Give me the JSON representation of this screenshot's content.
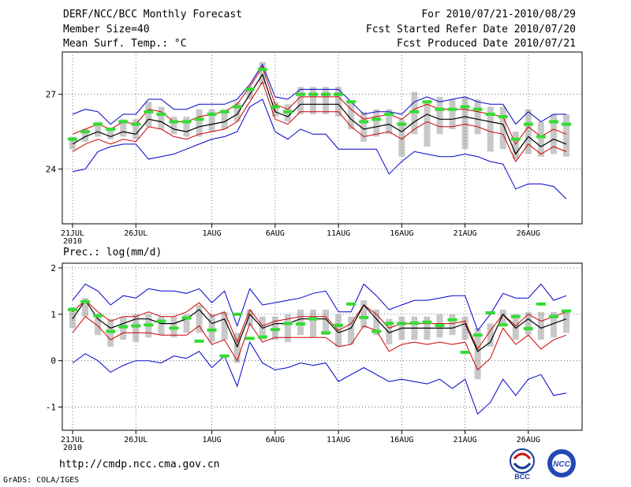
{
  "header": {
    "title": "DERF/NCC/BCC Monthly Forecast",
    "member_size": "Member Size=40",
    "variable": "Mean Surf. Temp.: °C",
    "forecast_period": "For 2010/07/21-2010/08/29",
    "started_refer": "Fcst Started Refer Date 2010/07/20",
    "produced": "Fcst Produced Date 2010/07/21"
  },
  "footer": {
    "url": "http://cmdp.ncc.cma.gov.cn",
    "grads": "GrADS: COLA/IGES",
    "logo_bcc": "BCC",
    "logo_ncc": "NCC"
  },
  "colors": {
    "mean": "#000000",
    "spread": "#cc0000",
    "extreme": "#0000cc",
    "median": "#33dd33",
    "box": "#c8c8c8"
  },
  "chart_data": [
    {
      "type": "line",
      "title": "Mean Surf. Temp.: °C",
      "x_tick_labels": [
        "21JUL",
        "26JUL",
        "1AUG",
        "6AUG",
        "11AUG",
        "16AUG",
        "21AUG",
        "26AUG"
      ],
      "x_tick_days": [
        1,
        6,
        12,
        17,
        22,
        27,
        32,
        37
      ],
      "year_label": "2010",
      "ylim": [
        21.8,
        28.7
      ],
      "yticks": [
        24,
        27
      ],
      "ytick_labels": [
        "24",
        "27"
      ],
      "days": 40,
      "series": [
        {
          "name": "ensemble mean",
          "values": [
            25.0,
            25.3,
            25.5,
            25.3,
            25.5,
            25.4,
            26.0,
            25.9,
            25.6,
            25.5,
            25.7,
            25.8,
            25.9,
            26.2,
            27.0,
            27.8,
            26.3,
            26.1,
            26.6,
            26.6,
            26.6,
            26.6,
            26.0,
            25.6,
            25.7,
            25.8,
            25.5,
            25.9,
            26.2,
            26.0,
            26.0,
            26.1,
            26.0,
            25.9,
            25.8,
            24.6,
            25.3,
            24.9,
            25.2,
            25.0
          ]
        },
        {
          "name": "upper spread",
          "values": [
            25.4,
            25.6,
            25.8,
            25.6,
            25.9,
            25.8,
            26.4,
            26.3,
            25.9,
            25.9,
            26.1,
            26.2,
            26.3,
            26.6,
            27.3,
            28.1,
            26.6,
            26.4,
            26.9,
            26.9,
            26.9,
            26.9,
            26.4,
            26.0,
            26.1,
            26.2,
            26.0,
            26.4,
            26.6,
            26.4,
            26.4,
            26.4,
            26.3,
            26.2,
            26.1,
            25.0,
            25.7,
            25.3,
            25.6,
            25.4
          ]
        },
        {
          "name": "lower spread",
          "values": [
            24.7,
            25.0,
            25.2,
            25.0,
            25.2,
            25.1,
            25.7,
            25.6,
            25.3,
            25.2,
            25.4,
            25.5,
            25.6,
            25.9,
            26.7,
            27.5,
            26.0,
            25.8,
            26.3,
            26.3,
            26.3,
            26.3,
            25.7,
            25.3,
            25.4,
            25.5,
            25.2,
            25.6,
            25.9,
            25.7,
            25.7,
            25.8,
            25.7,
            25.5,
            25.4,
            24.3,
            25.0,
            24.6,
            24.9,
            24.7
          ]
        },
        {
          "name": "maximum",
          "values": [
            26.2,
            26.4,
            26.3,
            25.8,
            26.2,
            26.2,
            26.8,
            26.8,
            26.4,
            26.4,
            26.6,
            26.6,
            26.6,
            26.8,
            27.4,
            28.2,
            26.9,
            26.8,
            27.2,
            27.2,
            27.2,
            27.2,
            26.7,
            26.2,
            26.3,
            26.3,
            26.2,
            26.7,
            26.9,
            26.7,
            26.8,
            26.9,
            26.7,
            26.6,
            26.6,
            25.8,
            26.3,
            25.9,
            26.2,
            26.2
          ]
        },
        {
          "name": "minimum",
          "values": [
            23.9,
            24.0,
            24.7,
            24.9,
            25.0,
            25.0,
            24.4,
            24.5,
            24.6,
            24.8,
            25.0,
            25.2,
            25.3,
            25.5,
            26.5,
            26.8,
            25.5,
            25.2,
            25.6,
            25.4,
            25.4,
            24.8,
            24.8,
            24.8,
            24.8,
            23.8,
            24.3,
            24.7,
            24.6,
            24.5,
            24.5,
            24.6,
            24.5,
            24.3,
            24.2,
            23.2,
            23.4,
            23.4,
            23.3,
            22.8
          ]
        },
        {
          "name": "median",
          "values": [
            25.2,
            25.5,
            25.8,
            25.6,
            25.9,
            25.8,
            26.3,
            26.2,
            25.9,
            25.9,
            26.0,
            26.2,
            26.3,
            26.5,
            27.2,
            28.0,
            26.5,
            26.3,
            27.0,
            27.0,
            27.0,
            27.0,
            26.7,
            25.9,
            26.0,
            26.2,
            25.8,
            26.3,
            26.7,
            26.4,
            26.4,
            26.5,
            26.4,
            26.2,
            26.1,
            25.2,
            25.8,
            25.3,
            25.9,
            25.8
          ]
        },
        {
          "name": "box upper",
          "values": [
            25.3,
            25.6,
            25.9,
            25.6,
            26.0,
            26.0,
            26.7,
            26.5,
            26.1,
            26.1,
            26.4,
            26.4,
            26.4,
            26.7,
            27.3,
            28.3,
            26.7,
            26.6,
            27.3,
            27.3,
            27.3,
            27.3,
            26.7,
            26.3,
            26.4,
            26.4,
            26.0,
            27.1,
            26.7,
            26.9,
            26.8,
            26.9,
            26.8,
            26.5,
            26.5,
            25.5,
            26.4,
            25.9,
            26.2,
            26.2
          ]
        },
        {
          "name": "box lower",
          "values": [
            24.8,
            25.1,
            25.3,
            25.2,
            25.3,
            25.2,
            25.7,
            25.6,
            25.4,
            25.3,
            25.3,
            25.5,
            25.6,
            25.9,
            26.8,
            27.4,
            26.1,
            25.9,
            26.2,
            26.2,
            26.2,
            26.1,
            25.6,
            25.1,
            25.3,
            25.4,
            24.5,
            25.4,
            24.9,
            25.4,
            25.6,
            24.8,
            25.4,
            24.7,
            24.8,
            24.4,
            24.6,
            24.5,
            24.6,
            24.5
          ]
        }
      ]
    },
    {
      "type": "line",
      "title": "Prec.: log(mm/d)",
      "x_tick_labels": [
        "21JUL",
        "26JUL",
        "1AUG",
        "6AUG",
        "11AUG",
        "16AUG",
        "21AUG",
        "26AUG"
      ],
      "x_tick_days": [
        1,
        6,
        12,
        17,
        22,
        27,
        32,
        37
      ],
      "year_label": "2010",
      "ylim": [
        -1.5,
        2.1
      ],
      "yticks": [
        -1,
        0,
        1,
        2
      ],
      "ytick_labels": [
        "-1",
        "0",
        "1",
        "2"
      ],
      "days": 40,
      "series": [
        {
          "name": "ensemble mean",
          "values": [
            0.9,
            1.3,
            0.9,
            0.7,
            0.8,
            0.9,
            0.9,
            0.8,
            0.8,
            0.9,
            1.1,
            0.8,
            0.9,
            0.3,
            1.0,
            0.7,
            0.8,
            0.8,
            0.9,
            0.9,
            0.9,
            0.6,
            0.7,
            1.2,
            0.9,
            0.6,
            0.7,
            0.7,
            0.7,
            0.7,
            0.7,
            0.8,
            0.2,
            0.4,
            1.0,
            0.7,
            0.9,
            0.7,
            0.8,
            0.9
          ]
        },
        {
          "name": "upper spread",
          "values": [
            1.05,
            1.3,
            1.05,
            0.85,
            0.95,
            0.95,
            1.05,
            0.95,
            0.95,
            1.05,
            1.25,
            0.95,
            1.05,
            0.4,
            1.1,
            0.75,
            0.85,
            0.9,
            0.95,
            0.95,
            0.95,
            0.65,
            0.8,
            1.2,
            1.0,
            0.7,
            0.8,
            0.8,
            0.8,
            0.8,
            0.8,
            0.85,
            0.25,
            0.65,
            1.0,
            0.75,
            1.0,
            0.85,
            0.95,
            1.05
          ]
        },
        {
          "name": "lower spread",
          "values": [
            0.6,
            0.95,
            0.75,
            0.45,
            0.6,
            0.6,
            0.6,
            0.55,
            0.55,
            0.55,
            0.75,
            0.35,
            0.45,
            0.0,
            0.8,
            0.4,
            0.5,
            0.5,
            0.5,
            0.5,
            0.5,
            0.3,
            0.35,
            0.75,
            0.65,
            0.2,
            0.35,
            0.4,
            0.35,
            0.4,
            0.35,
            0.4,
            -0.2,
            0.05,
            0.7,
            0.35,
            0.55,
            0.25,
            0.45,
            0.55
          ]
        },
        {
          "name": "maximum",
          "values": [
            1.3,
            1.65,
            1.5,
            1.2,
            1.4,
            1.35,
            1.55,
            1.5,
            1.5,
            1.45,
            1.55,
            1.25,
            1.5,
            0.75,
            1.55,
            1.2,
            1.25,
            1.3,
            1.35,
            1.45,
            1.5,
            1.05,
            1.05,
            1.65,
            1.4,
            1.1,
            1.2,
            1.3,
            1.3,
            1.35,
            1.4,
            1.4,
            0.65,
            1.0,
            1.45,
            1.35,
            1.35,
            1.65,
            1.3,
            1.4
          ]
        },
        {
          "name": "minimum",
          "values": [
            -0.05,
            0.15,
            0.0,
            -0.25,
            -0.1,
            0.0,
            0.0,
            -0.05,
            0.1,
            0.05,
            0.2,
            -0.15,
            0.1,
            -0.55,
            0.4,
            -0.05,
            -0.2,
            -0.15,
            -0.05,
            -0.1,
            -0.05,
            -0.45,
            -0.3,
            -0.15,
            -0.3,
            -0.45,
            -0.4,
            -0.45,
            -0.5,
            -0.4,
            -0.6,
            -0.4,
            -1.15,
            -0.9,
            -0.4,
            -0.75,
            -0.4,
            -0.3,
            -0.75,
            -0.7
          ]
        },
        {
          "name": "median",
          "values": [
            1.1,
            1.27,
            0.97,
            0.63,
            0.73,
            0.75,
            0.77,
            0.85,
            0.7,
            0.92,
            0.42,
            0.66,
            0.1,
            1.0,
            0.48,
            0.51,
            0.67,
            0.8,
            0.79,
            0.9,
            0.6,
            0.76,
            1.22,
            0.93,
            0.63,
            0.8,
            0.8,
            0.81,
            0.83,
            0.76,
            0.88,
            0.18,
            0.55,
            1.03,
            0.77,
            0.95,
            0.69,
            1.22,
            0.95,
            1.07
          ]
        },
        {
          "name": "box upper",
          "values": [
            1.15,
            1.35,
            1.0,
            0.9,
            0.95,
            1.0,
            1.0,
            0.95,
            0.95,
            1.0,
            1.2,
            1.0,
            1.05,
            0.6,
            1.1,
            0.95,
            0.95,
            1.0,
            1.1,
            1.1,
            1.1,
            1.0,
            0.95,
            1.3,
            1.1,
            0.9,
            0.95,
            0.95,
            0.95,
            1.0,
            1.0,
            0.95,
            0.7,
            0.8,
            1.1,
            1.0,
            1.05,
            1.05,
            1.05,
            1.1
          ]
        },
        {
          "name": "box lower",
          "values": [
            0.7,
            0.95,
            0.55,
            0.3,
            0.45,
            0.4,
            0.5,
            0.55,
            0.5,
            0.6,
            0.6,
            0.4,
            0.45,
            -0.05,
            0.75,
            0.45,
            0.45,
            0.4,
            0.55,
            0.5,
            0.55,
            0.3,
            0.35,
            0.7,
            0.55,
            0.35,
            0.45,
            0.45,
            0.45,
            0.5,
            0.55,
            0.45,
            -0.4,
            0.3,
            0.75,
            0.45,
            0.55,
            0.45,
            0.5,
            0.6
          ]
        }
      ]
    }
  ]
}
